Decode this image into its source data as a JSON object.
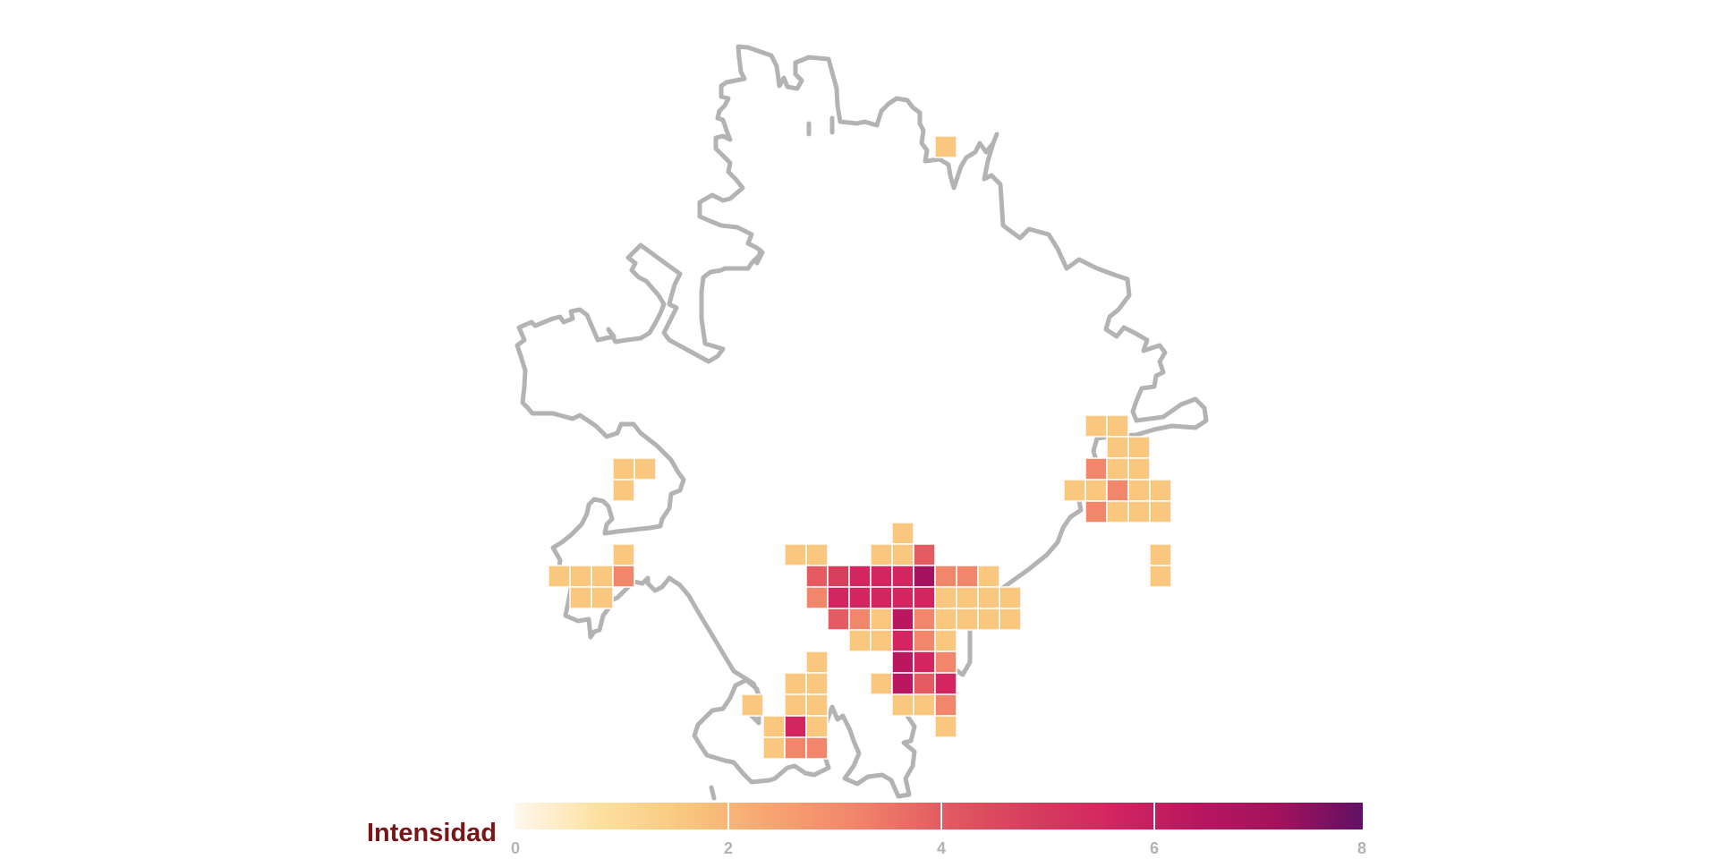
{
  "legend": {
    "title": "Intensidad",
    "range": [
      0,
      8
    ],
    "ticks": [
      "0",
      "2",
      "4",
      "6",
      "8"
    ]
  },
  "colors": {
    "boundary": "#b3b3b3",
    "legend_title": "#7a1518",
    "legend_labels": "#b3b3b3",
    "scale": [
      "#fff8f0",
      "#fde0a0",
      "#f9c77e",
      "#f7a572",
      "#f1866b",
      "#e45c62",
      "#d6405d",
      "#d32660",
      "#b9175f",
      "#a3125e",
      "#611162"
    ]
  },
  "map": {
    "region_outline": "city-boundary",
    "cells_value_range": [
      1,
      8
    ],
    "cell_count": 106
  }
}
